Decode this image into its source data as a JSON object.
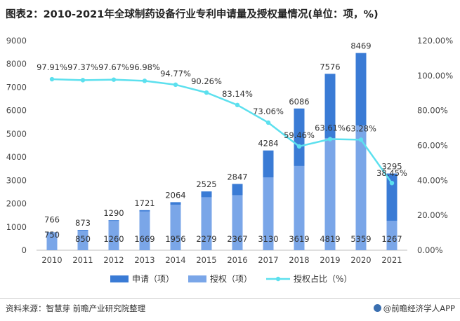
{
  "page": {
    "title": "图表2：2010-2021年全球制药设备行业专利申请量及授权量情况(单位：项，%)",
    "source": "资料来源：智慧芽 前瞻产业研究院整理",
    "brand": "@前瞻经济学人APP"
  },
  "colors": {
    "apply": "#3a7bd5",
    "grant": "#7aa6e8",
    "ratio": "#5ce0ee",
    "axis": "#bfbfbf"
  },
  "chart_data": {
    "type": "bar",
    "categories": [
      "2010",
      "2011",
      "2012",
      "2013",
      "2014",
      "2015",
      "2016",
      "2017",
      "2018",
      "2019",
      "2020",
      "2021"
    ],
    "series": [
      {
        "name": "申请（项）",
        "type": "bar",
        "axis": "left",
        "values": [
          766,
          873,
          1290,
          1721,
          2064,
          2525,
          2847,
          4284,
          6086,
          7576,
          8469,
          3295
        ]
      },
      {
        "name": "授权（项）",
        "type": "bar",
        "axis": "left",
        "values": [
          750,
          850,
          1260,
          1669,
          1956,
          2279,
          2367,
          3130,
          3619,
          4819,
          5359,
          1267
        ]
      },
      {
        "name": "授权占比（%）",
        "type": "line",
        "axis": "right",
        "values": [
          97.91,
          97.37,
          97.67,
          96.98,
          94.77,
          90.26,
          83.14,
          73.06,
          59.46,
          63.61,
          63.28,
          38.45
        ],
        "labels": [
          "97.91%",
          "97.37%",
          "97.67%",
          "96.98%",
          "94.77%",
          "90.26%",
          "83.14%",
          "73.06%",
          "59.46%",
          "63.61%",
          "63.28%",
          "38.45%"
        ]
      }
    ],
    "y_left": {
      "min": 0,
      "max": 9000,
      "ticks": [
        0,
        1000,
        2000,
        3000,
        4000,
        5000,
        6000,
        7000,
        8000,
        9000
      ],
      "tick_labels": [
        "0",
        "1000",
        "2000",
        "3000",
        "4000",
        "5000",
        "6000",
        "7000",
        "8000",
        "9000"
      ]
    },
    "y_right": {
      "min": 0,
      "max": 120,
      "ticks": [
        0,
        20,
        40,
        60,
        80,
        100,
        120
      ],
      "tick_labels": [
        "0.00%",
        "20.00%",
        "40.00%",
        "60.00%",
        "80.00%",
        "100.00%",
        "120.00%"
      ]
    },
    "legend": {
      "position": "bottom",
      "items": [
        "申请（项）",
        "授权（项）",
        "授权占比（%）"
      ]
    },
    "grid": false
  }
}
